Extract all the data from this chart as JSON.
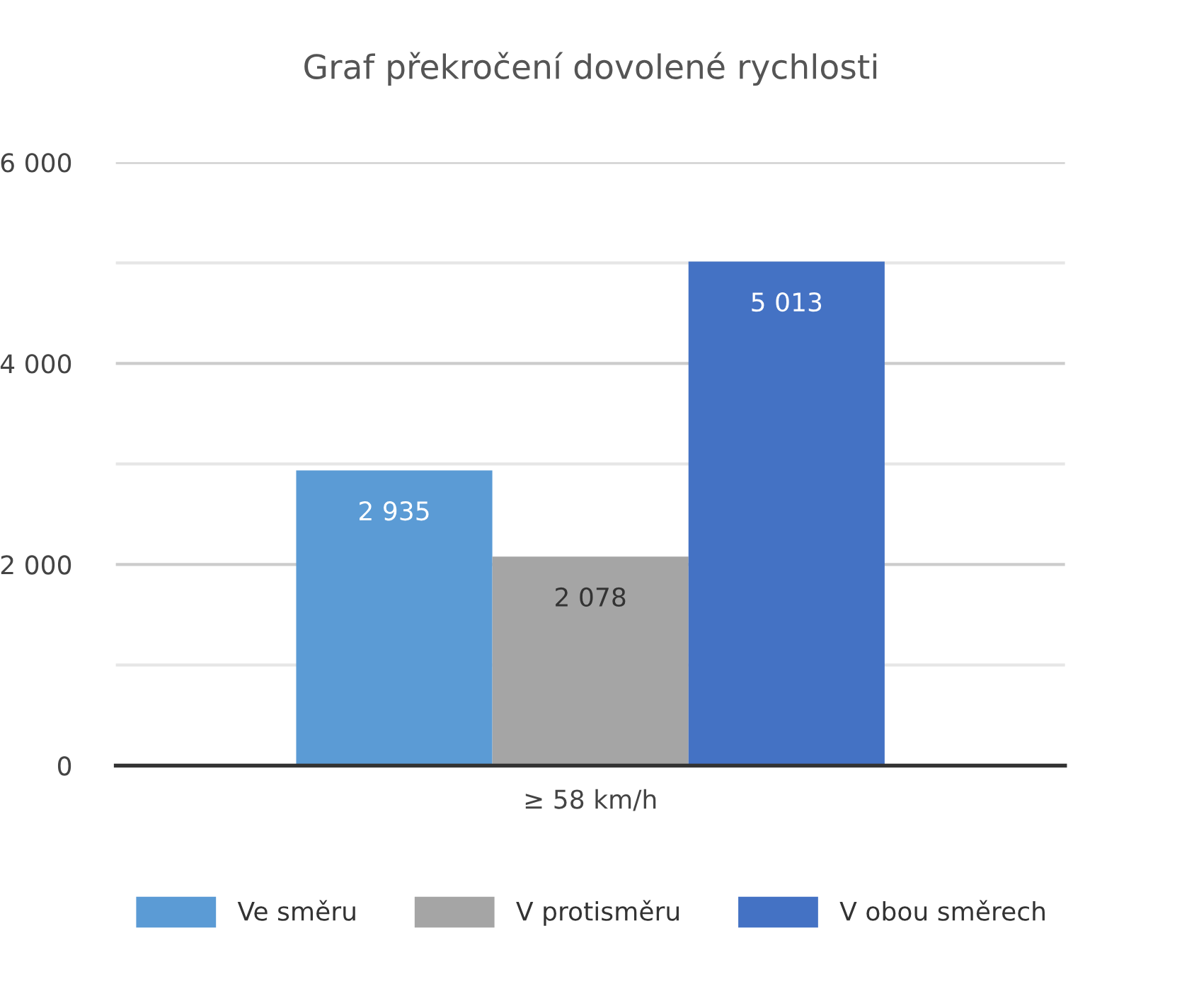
{
  "chart_data": {
    "type": "bar",
    "title": "Graf překročení dovolené rychlosti",
    "categories": [
      "≥ 58 km/h"
    ],
    "series": [
      {
        "name": "Ve směru",
        "color": "#5b9bd5",
        "values": [
          2935
        ],
        "value_labels": [
          "2 935"
        ]
      },
      {
        "name": "V protisměru",
        "color": "#a5a5a5",
        "values": [
          2078
        ],
        "value_labels": [
          "2 078"
        ]
      },
      {
        "name": "V obou směrech",
        "color": "#4472c4",
        "values": [
          5013
        ],
        "value_labels": [
          "5 013"
        ]
      }
    ],
    "ylim": [
      0,
      6000
    ],
    "yticks": [
      {
        "value": 0,
        "label": "0"
      },
      {
        "value": 1000,
        "label": null
      },
      {
        "value": 2000,
        "label": "2 000"
      },
      {
        "value": 3000,
        "label": null
      },
      {
        "value": 4000,
        "label": "4 000"
      },
      {
        "value": 5000,
        "label": null
      },
      {
        "value": 6000,
        "label": "6 000"
      }
    ],
    "grid": "y",
    "legend": "bottom"
  }
}
